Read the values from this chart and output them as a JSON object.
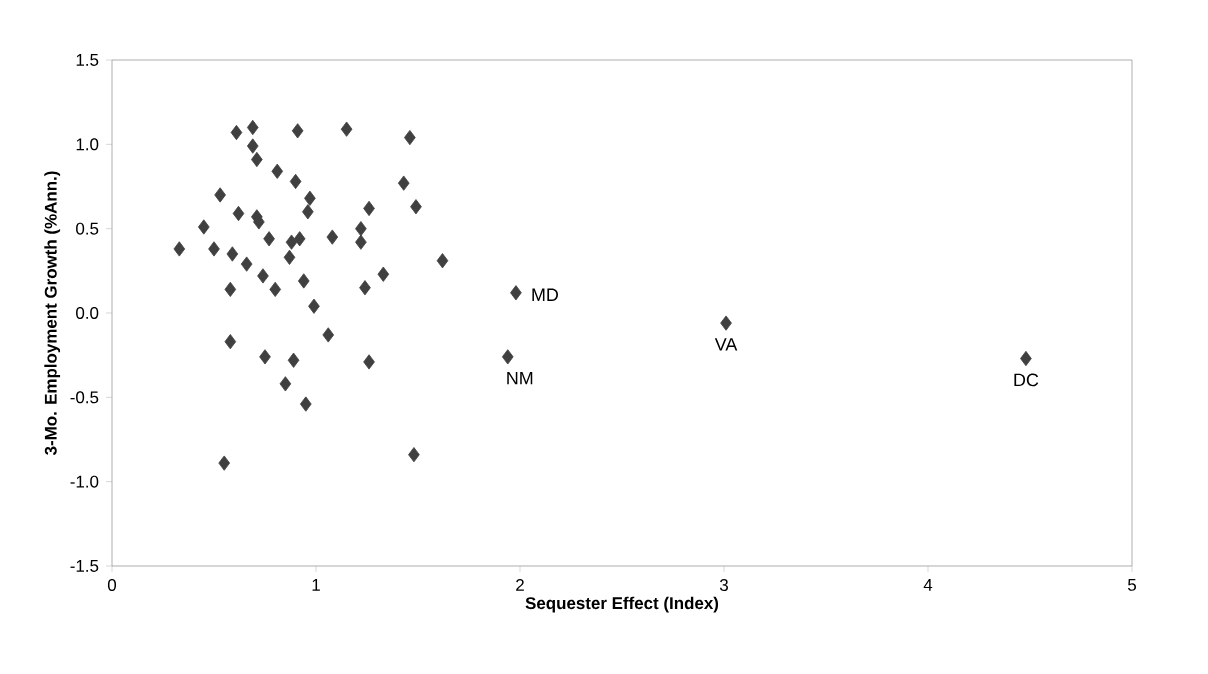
{
  "chart_data": {
    "type": "scatter",
    "xlabel": "Sequester Effect (Index)",
    "ylabel": "3-Mo. Employment Growth (%Ann.)",
    "x": [
      0.33,
      0.45,
      0.53,
      0.5,
      0.59,
      0.61,
      0.69,
      0.69,
      0.71,
      0.62,
      0.71,
      0.72,
      0.77,
      0.66,
      0.74,
      0.58,
      0.81,
      0.9,
      0.91,
      0.97,
      0.96,
      0.92,
      0.88,
      0.87,
      0.8,
      0.94,
      0.99,
      1.08,
      1.15,
      1.22,
      1.22,
      1.26,
      1.24,
      1.33,
      1.46,
      1.43,
      1.49,
      1.62,
      1.06,
      0.58,
      0.75,
      0.89,
      1.26,
      0.85,
      0.95,
      0.55,
      1.48,
      1.98,
      1.94,
      3.01,
      4.48
    ],
    "values": [
      0.38,
      0.51,
      0.7,
      0.38,
      0.35,
      1.07,
      1.1,
      0.99,
      0.91,
      0.59,
      0.57,
      0.54,
      0.44,
      0.29,
      0.22,
      0.14,
      0.84,
      0.78,
      1.08,
      0.68,
      0.6,
      0.44,
      0.42,
      0.33,
      0.14,
      0.19,
      0.04,
      0.45,
      1.09,
      0.5,
      0.42,
      0.62,
      0.15,
      0.23,
      1.04,
      0.77,
      0.63,
      0.31,
      -0.13,
      -0.17,
      -0.26,
      -0.28,
      -0.29,
      -0.42,
      -0.54,
      -0.89,
      -0.84,
      0.12,
      -0.26,
      -0.06,
      -0.27
    ],
    "color": "#404040",
    "marker": "diamond",
    "grid": false,
    "xlim": [
      0,
      5
    ],
    "xticks": [
      0,
      1,
      2,
      3,
      4,
      5
    ],
    "ylim": [
      -1.5,
      1.5
    ],
    "yticks": [
      {
        "value": -1.5,
        "label": "-1.5"
      },
      {
        "value": -1.0,
        "label": "-1.0"
      },
      {
        "value": -0.5,
        "label": "-0.5"
      },
      {
        "value": 0,
        "label": "0.0"
      },
      {
        "value": 0.5,
        "label": "0.5"
      },
      {
        "value": 1.0,
        "label": "1.0"
      },
      {
        "value": 1.5,
        "label": "1.5"
      }
    ],
    "annotations": [
      {
        "text": "MD",
        "x": 1.98,
        "y": 0.12
      },
      {
        "text": "NM",
        "x": 1.94,
        "y": -0.26
      },
      {
        "text": "VA",
        "x": 3.01,
        "y": -0.06
      },
      {
        "text": "DC",
        "x": 4.48,
        "y": -0.27
      }
    ]
  }
}
